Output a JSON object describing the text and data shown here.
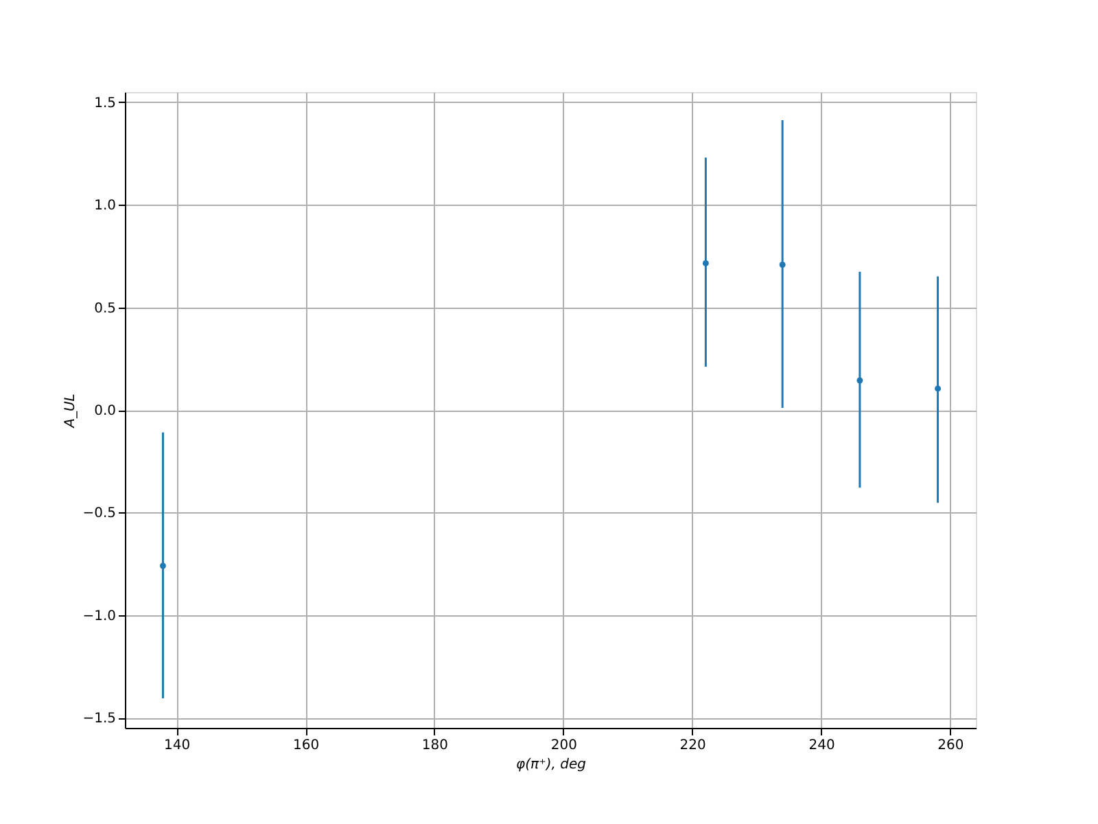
{
  "chart_data": {
    "type": "scatter",
    "xlabel": "φ(π⁺), deg",
    "ylabel": "A_UL",
    "x": [
      137.9,
      222.1,
      234.0,
      246.0,
      258.1
    ],
    "values": [
      -0.76,
      0.715,
      0.708,
      0.144,
      0.104
    ],
    "errors": [
      [
        -1.406,
        -0.11
      ],
      [
        0.211,
        1.23
      ],
      [
        0.01,
        1.413
      ],
      [
        -0.379,
        0.674
      ],
      [
        -0.453,
        0.651
      ]
    ],
    "color": "#1f77b4",
    "marker": "circle",
    "grid": true,
    "xlim": [
      132,
      264
    ],
    "xticks": [
      140,
      160,
      180,
      200,
      220,
      240,
      260
    ],
    "ylim": [
      -1.55,
      1.55
    ],
    "yticks": [
      -1.5,
      {
        "value": -1,
        "label": "−1.0"
      },
      -0.5,
      {
        "value": 0,
        "label": "0.0"
      },
      0.5,
      {
        "value": 1,
        "label": "1.0"
      },
      1.5
    ]
  }
}
